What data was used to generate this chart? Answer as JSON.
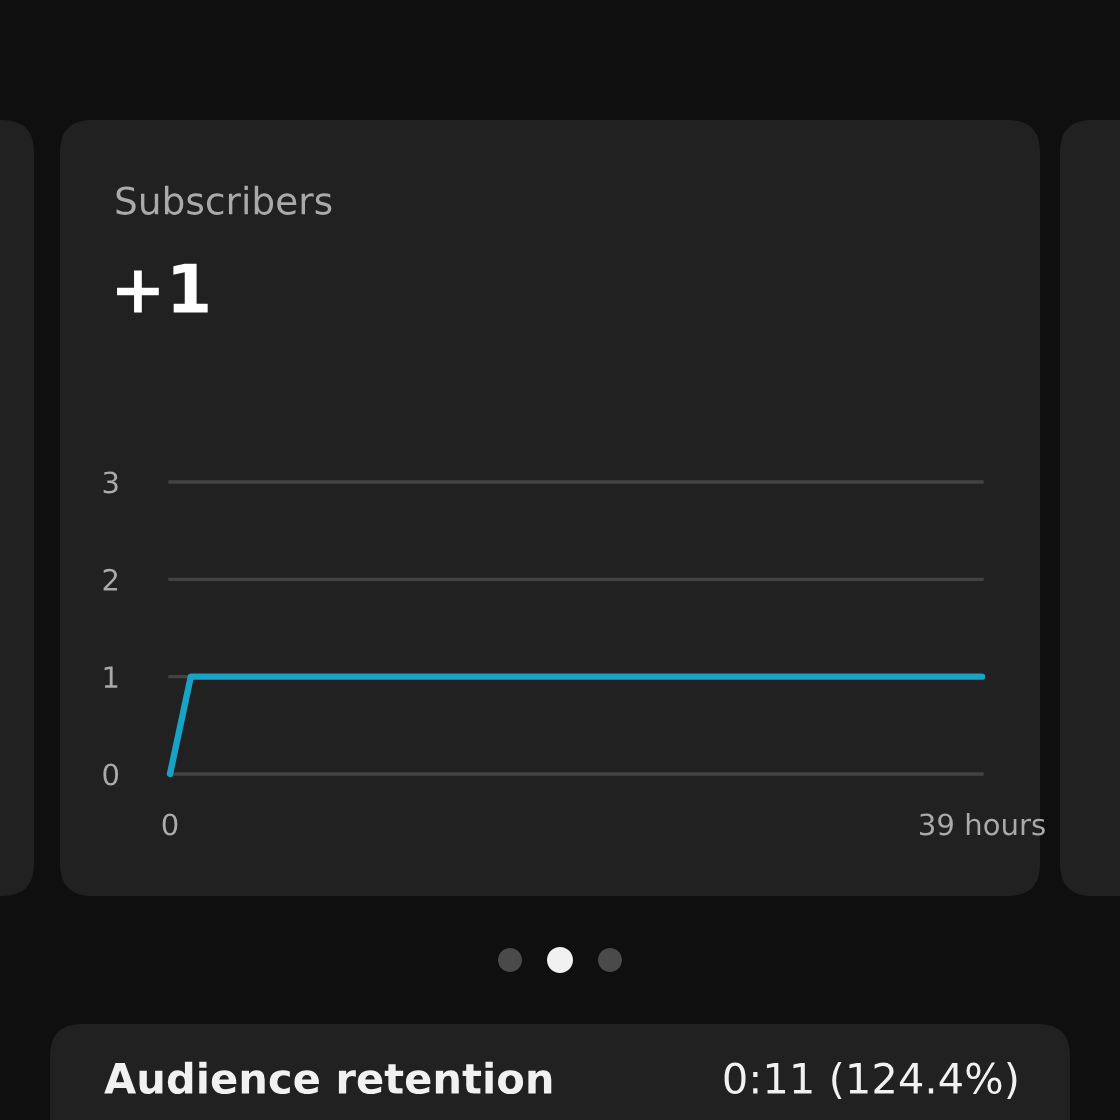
{
  "chart_data": {
    "type": "line",
    "title": "Subscribers",
    "subtitle": "+1",
    "x": [
      0,
      1,
      39
    ],
    "series": [
      {
        "color": "#18a3c6",
        "values": [
          0,
          1,
          1
        ]
      }
    ],
    "xlim": [
      0,
      39
    ],
    "xticks": [
      0,
      {
        "value": 39,
        "label": "39 hours"
      }
    ],
    "ylim": [
      0,
      3
    ],
    "yticks": [
      0,
      1,
      2,
      3
    ],
    "grid": "y",
    "line_style": "solid",
    "annotations": [
      "Audience retention",
      "0:11 (124.4%)"
    ]
  }
}
